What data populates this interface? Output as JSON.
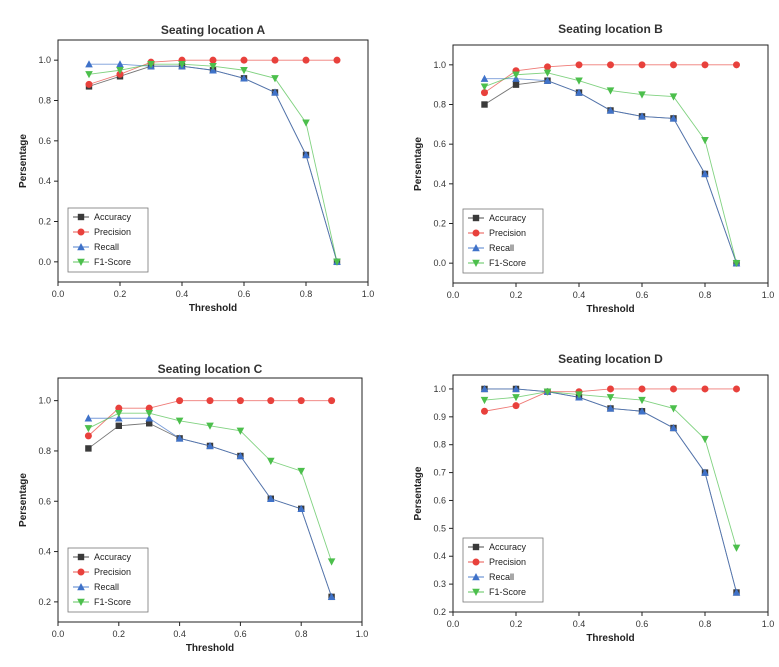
{
  "chart_data": [
    {
      "type": "line",
      "title": "Seating location A",
      "xlabel": "Threshold",
      "ylabel": "Persentage",
      "xlim": [
        0.0,
        1.0
      ],
      "ylim": [
        -0.1,
        1.1
      ],
      "xticks": [
        "0.0",
        "0.2",
        "0.4",
        "0.6",
        "0.8",
        "1.0"
      ],
      "yticks": [
        "0.0",
        "0.2",
        "0.4",
        "0.6",
        "0.8",
        "1.0"
      ],
      "legend_position": "bottom-left",
      "x": [
        0.1,
        0.2,
        0.3,
        0.4,
        0.5,
        0.6,
        0.7,
        0.8,
        0.9
      ],
      "series": [
        {
          "name": "Accuracy",
          "marker": "square",
          "color": "#3a3a3a",
          "values": [
            0.87,
            0.92,
            0.97,
            0.97,
            0.95,
            0.91,
            0.84,
            0.53,
            0.0
          ]
        },
        {
          "name": "Precision",
          "marker": "circle",
          "color": "#e8413c",
          "values": [
            0.88,
            0.93,
            0.99,
            1.0,
            1.0,
            1.0,
            1.0,
            1.0,
            1.0
          ]
        },
        {
          "name": "Recall",
          "marker": "triangle-up",
          "color": "#3f72c9",
          "values": [
            0.98,
            0.98,
            0.97,
            0.97,
            0.95,
            0.91,
            0.84,
            0.53,
            0.0
          ]
        },
        {
          "name": "F1-Score",
          "marker": "triangle-down",
          "color": "#4cbf4c",
          "values": [
            0.93,
            0.95,
            0.98,
            0.98,
            0.97,
            0.95,
            0.91,
            0.69,
            0.0
          ]
        }
      ]
    },
    {
      "type": "line",
      "title": "Seating location B",
      "xlabel": "Threshold",
      "ylabel": "Persentage",
      "xlim": [
        0.0,
        1.0
      ],
      "ylim": [
        -0.1,
        1.1
      ],
      "xticks": [
        "0.0",
        "0.2",
        "0.4",
        "0.6",
        "0.8",
        "1.0"
      ],
      "yticks": [
        "0.0",
        "0.2",
        "0.4",
        "0.6",
        "0.8",
        "1.0"
      ],
      "legend_position": "bottom-left",
      "x": [
        0.1,
        0.2,
        0.3,
        0.4,
        0.5,
        0.6,
        0.7,
        0.8,
        0.9
      ],
      "series": [
        {
          "name": "Accuracy",
          "marker": "square",
          "color": "#3a3a3a",
          "values": [
            0.8,
            0.9,
            0.92,
            0.86,
            0.77,
            0.74,
            0.73,
            0.45,
            0.0
          ]
        },
        {
          "name": "Precision",
          "marker": "circle",
          "color": "#e8413c",
          "values": [
            0.86,
            0.97,
            0.99,
            1.0,
            1.0,
            1.0,
            1.0,
            1.0,
            1.0
          ]
        },
        {
          "name": "Recall",
          "marker": "triangle-up",
          "color": "#3f72c9",
          "values": [
            0.93,
            0.93,
            0.92,
            0.86,
            0.77,
            0.74,
            0.73,
            0.45,
            0.0
          ]
        },
        {
          "name": "F1-Score",
          "marker": "triangle-down",
          "color": "#4cbf4c",
          "values": [
            0.89,
            0.95,
            0.96,
            0.92,
            0.87,
            0.85,
            0.84,
            0.62,
            0.0
          ]
        }
      ]
    },
    {
      "type": "line",
      "title": "Seating location C",
      "xlabel": "Threshold",
      "ylabel": "Persentage",
      "xlim": [
        0.0,
        1.0
      ],
      "ylim": [
        0.12,
        1.09
      ],
      "xticks": [
        "0.0",
        "0.2",
        "0.4",
        "0.6",
        "0.8",
        "1.0"
      ],
      "yticks": [
        "0.2",
        "0.4",
        "0.6",
        "0.8",
        "1.0"
      ],
      "legend_position": "bottom-left",
      "x": [
        0.1,
        0.2,
        0.3,
        0.4,
        0.5,
        0.6,
        0.7,
        0.8,
        0.9
      ],
      "series": [
        {
          "name": "Accuracy",
          "marker": "square",
          "color": "#3a3a3a",
          "values": [
            0.81,
            0.9,
            0.91,
            0.85,
            0.82,
            0.78,
            0.61,
            0.57,
            0.22
          ]
        },
        {
          "name": "Precision",
          "marker": "circle",
          "color": "#e8413c",
          "values": [
            0.86,
            0.97,
            0.97,
            1.0,
            1.0,
            1.0,
            1.0,
            1.0,
            1.0
          ]
        },
        {
          "name": "Recall",
          "marker": "triangle-up",
          "color": "#3f72c9",
          "values": [
            0.93,
            0.93,
            0.93,
            0.85,
            0.82,
            0.78,
            0.61,
            0.57,
            0.22
          ]
        },
        {
          "name": "F1-Score",
          "marker": "triangle-down",
          "color": "#4cbf4c",
          "values": [
            0.89,
            0.95,
            0.95,
            0.92,
            0.9,
            0.88,
            0.76,
            0.72,
            0.36
          ]
        }
      ]
    },
    {
      "type": "line",
      "title": "Seating location D",
      "xlabel": "Threshold",
      "ylabel": "Persentage",
      "xlim": [
        0.0,
        1.0
      ],
      "ylim": [
        0.2,
        1.05
      ],
      "xticks": [
        "0.0",
        "0.2",
        "0.4",
        "0.6",
        "0.8",
        "1.0"
      ],
      "yticks": [
        "0.2",
        "0.3",
        "0.4",
        "0.5",
        "0.6",
        "0.7",
        "0.8",
        "0.9",
        "1.0"
      ],
      "legend_position": "bottom-left",
      "x": [
        0.1,
        0.2,
        0.3,
        0.4,
        0.5,
        0.6,
        0.7,
        0.8,
        0.9
      ],
      "series": [
        {
          "name": "Accuracy",
          "marker": "square",
          "color": "#3a3a3a",
          "values": [
            1.0,
            1.0,
            0.99,
            0.97,
            0.93,
            0.92,
            0.86,
            0.7,
            0.27
          ]
        },
        {
          "name": "Precision",
          "marker": "circle",
          "color": "#e8413c",
          "values": [
            0.92,
            0.94,
            0.99,
            0.99,
            1.0,
            1.0,
            1.0,
            1.0,
            1.0
          ]
        },
        {
          "name": "Recall",
          "marker": "triangle-up",
          "color": "#3f72c9",
          "values": [
            1.0,
            1.0,
            0.99,
            0.97,
            0.93,
            0.92,
            0.86,
            0.7,
            0.27
          ]
        },
        {
          "name": "F1-Score",
          "marker": "triangle-down",
          "color": "#4cbf4c",
          "values": [
            0.96,
            0.97,
            0.99,
            0.98,
            0.97,
            0.96,
            0.93,
            0.82,
            0.43
          ]
        }
      ]
    }
  ]
}
